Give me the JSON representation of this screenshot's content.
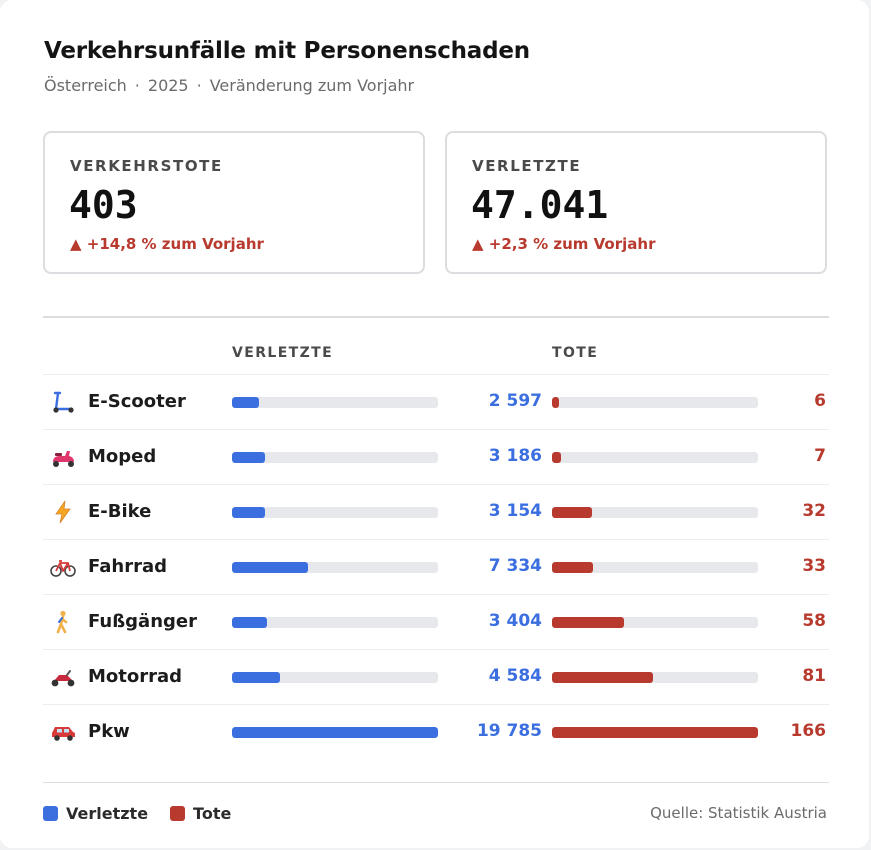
{
  "header": {
    "title": "Verkehrsunfälle mit Personenschaden",
    "region": "Österreich",
    "year": "2025",
    "comparison": "Veränderung zum Vorjahr"
  },
  "kpis": [
    {
      "label": "VERKEHRSTOTE",
      "value": "403",
      "change": "▲ +14,8 % zum Vorjahr"
    },
    {
      "label": "VERLETZTE",
      "value": "47.041",
      "change": "▲ +2,3 % zum Vorjahr"
    }
  ],
  "columns": {
    "injured": "VERLETZTE",
    "dead": "TOTE"
  },
  "chart_data": {
    "type": "bar",
    "categories": [
      "E-Scooter",
      "Moped",
      "E-Bike",
      "Fahrrad",
      "Fußgänger",
      "Motorrad",
      "Pkw"
    ],
    "icons": [
      "kick-scooter-icon",
      "motor-scooter-icon",
      "lightning-bolt-icon",
      "bicycle-icon",
      "pedestrian-icon",
      "motorcycle-icon",
      "car-icon"
    ],
    "series": [
      {
        "name": "Verletzte",
        "values": [
          2597,
          3186,
          3154,
          7334,
          3404,
          4584,
          19785
        ],
        "labels": [
          "2 597",
          "3 186",
          "3 154",
          "7 334",
          "3 404",
          "4 584",
          "19 785"
        ],
        "color": "#3b6fe0"
      },
      {
        "name": "Tote",
        "values": [
          6,
          7,
          32,
          33,
          58,
          81,
          166
        ],
        "labels": [
          "6",
          "7",
          "32",
          "33",
          "58",
          "81",
          "166"
        ],
        "color": "#b83a2e"
      }
    ]
  },
  "legend": {
    "injured": "Verletzte",
    "dead": "Tote"
  },
  "source": "Quelle: Statistik Austria"
}
